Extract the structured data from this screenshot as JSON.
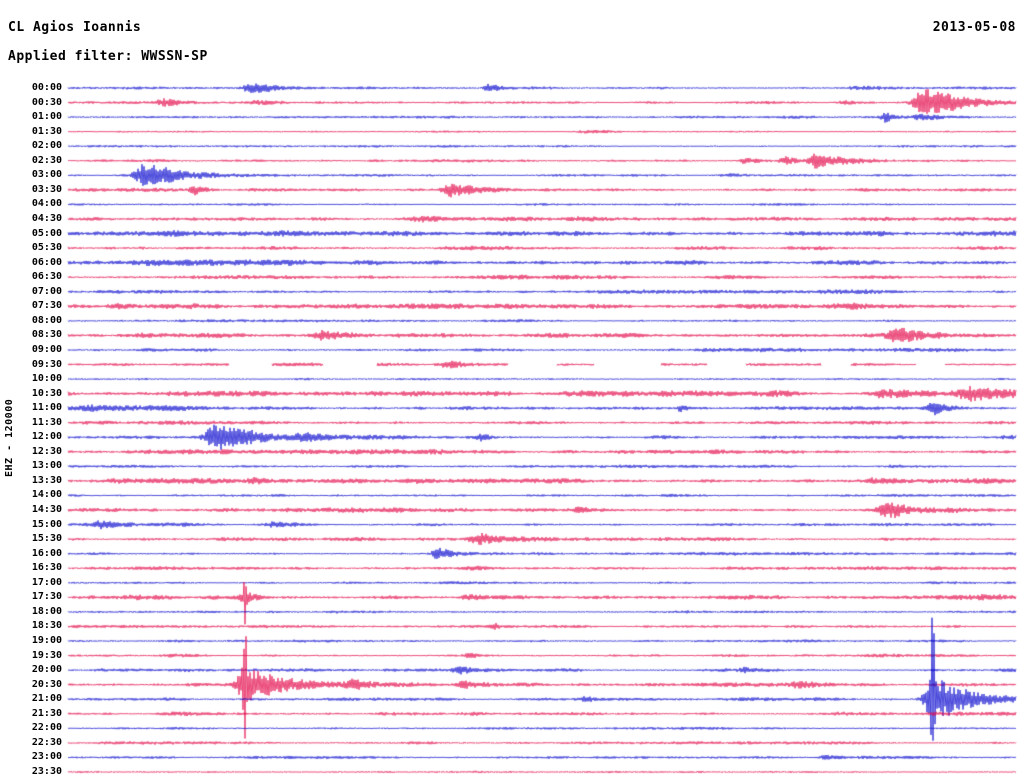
{
  "header": {
    "station_title": "CL Agios Ioannis",
    "date": "2013-05-08",
    "filter": "Applied filter: WWSSN-SP"
  },
  "axis": {
    "left_vertical_label": "EHZ - 120000"
  },
  "chart_data": {
    "type": "helicorder",
    "station": "CL Agios Ioannis",
    "channel": "EHZ",
    "scale_label": "120000",
    "date": "2013-05-08",
    "filter": "WWSSN-SP",
    "minutes_per_row": 30,
    "row_colors_alternate": [
      "#0000cd",
      "#e30045"
    ],
    "row_labels": [
      "00:00",
      "00:30",
      "01:00",
      "01:30",
      "02:00",
      "02:30",
      "03:00",
      "03:30",
      "04:00",
      "04:30",
      "05:00",
      "05:30",
      "06:00",
      "06:30",
      "07:00",
      "07:30",
      "08:00",
      "08:30",
      "09:00",
      "09:30",
      "10:00",
      "10:30",
      "11:00",
      "11:30",
      "12:00",
      "12:30",
      "13:00",
      "13:30",
      "14:00",
      "14:30",
      "15:00",
      "15:30",
      "16:00",
      "16:30",
      "17:00",
      "17:30",
      "18:00",
      "18:30",
      "19:00",
      "19:30",
      "20:00",
      "20:30",
      "21:00",
      "21:30",
      "22:00",
      "22:30",
      "23:00",
      "23:30"
    ],
    "noise_amp": [
      1.0,
      1.1,
      1.0,
      0.9,
      0.9,
      1.1,
      1.0,
      1.3,
      0.9,
      1.5,
      2.1,
      1.7,
      2.1,
      1.6,
      1.5,
      1.8,
      1.1,
      1.7,
      1.6,
      1.2,
      0.9,
      2.3,
      1.7,
      1.4,
      1.5,
      1.7,
      1.1,
      1.9,
      1.3,
      1.7,
      1.4,
      1.5,
      1.2,
      1.3,
      1.0,
      2.0,
      1.1,
      1.2,
      1.0,
      1.2,
      1.2,
      1.6,
      1.3,
      1.4,
      0.9,
      1.1,
      1.0,
      1.0
    ],
    "gaps": {
      "19": [
        [
          0.17,
          0.215
        ],
        [
          0.27,
          0.325
        ],
        [
          0.465,
          0.515
        ],
        [
          0.555,
          0.625
        ],
        [
          0.675,
          0.715
        ],
        [
          0.795,
          0.825
        ],
        [
          0.895,
          0.925
        ]
      ]
    },
    "events": [
      {
        "row": 0,
        "x": 0.192,
        "amp": 4,
        "w": 0.006
      },
      {
        "row": 0,
        "x": 0.205,
        "amp": 2.5,
        "w": 0.012
      },
      {
        "row": 0,
        "x": 0.445,
        "amp": 4.5,
        "w": 0.005
      },
      {
        "row": 0,
        "x": 0.835,
        "amp": 1.8,
        "w": 0.01
      },
      {
        "row": 1,
        "x": 0.102,
        "amp": 4,
        "w": 0.009
      },
      {
        "row": 1,
        "x": 0.2,
        "amp": 1.8,
        "w": 0.012
      },
      {
        "row": 1,
        "x": 0.82,
        "amp": 2,
        "w": 0.008
      },
      {
        "row": 1,
        "x": 0.904,
        "amp": 13,
        "w": 0.011
      },
      {
        "row": 1,
        "x": 0.93,
        "amp": 5,
        "w": 0.02
      },
      {
        "row": 2,
        "x": 0.862,
        "amp": 5,
        "w": 0.004
      },
      {
        "row": 2,
        "x": 0.905,
        "amp": 2.5,
        "w": 0.012
      },
      {
        "row": 3,
        "x": 0.55,
        "amp": 1.3,
        "w": 0.01
      },
      {
        "row": 5,
        "x": 0.714,
        "amp": 3,
        "w": 0.005
      },
      {
        "row": 5,
        "x": 0.757,
        "amp": 4,
        "w": 0.005
      },
      {
        "row": 5,
        "x": 0.789,
        "amp": 6,
        "w": 0.007
      },
      {
        "row": 5,
        "x": 0.81,
        "amp": 2.5,
        "w": 0.018
      },
      {
        "row": 6,
        "x": 0.081,
        "amp": 10,
        "w": 0.01
      },
      {
        "row": 6,
        "x": 0.105,
        "amp": 4,
        "w": 0.022
      },
      {
        "row": 6,
        "x": 0.7,
        "amp": 1.5,
        "w": 0.01
      },
      {
        "row": 7,
        "x": 0.134,
        "amp": 4,
        "w": 0.005
      },
      {
        "row": 7,
        "x": 0.403,
        "amp": 6,
        "w": 0.007
      },
      {
        "row": 7,
        "x": 0.425,
        "amp": 2.5,
        "w": 0.02
      },
      {
        "row": 9,
        "x": 0.38,
        "amp": 2,
        "w": 0.02
      },
      {
        "row": 9,
        "x": 0.55,
        "amp": 1.8,
        "w": 0.02
      },
      {
        "row": 15,
        "x": 0.055,
        "amp": 2.5,
        "w": 0.012
      },
      {
        "row": 15,
        "x": 0.825,
        "amp": 2.5,
        "w": 0.02
      },
      {
        "row": 17,
        "x": 0.271,
        "amp": 4,
        "w": 0.012
      },
      {
        "row": 17,
        "x": 0.878,
        "amp": 7,
        "w": 0.011
      },
      {
        "row": 19,
        "x": 0.403,
        "amp": 3,
        "w": 0.012
      },
      {
        "row": 21,
        "x": 0.86,
        "amp": 3,
        "w": 0.01
      },
      {
        "row": 21,
        "x": 0.955,
        "amp": 5.5,
        "w": 0.018
      },
      {
        "row": 22,
        "x": 0.03,
        "amp": 3,
        "w": 0.02
      },
      {
        "row": 22,
        "x": 0.646,
        "amp": 2.5,
        "w": 0.004
      },
      {
        "row": 22,
        "x": 0.915,
        "amp": 5,
        "w": 0.008
      },
      {
        "row": 24,
        "x": 0.155,
        "amp": 13,
        "w": 0.009
      },
      {
        "row": 24,
        "x": 0.185,
        "amp": 4,
        "w": 0.022
      },
      {
        "row": 24,
        "x": 0.25,
        "amp": 3,
        "w": 0.012
      },
      {
        "row": 24,
        "x": 0.435,
        "amp": 3,
        "w": 0.005
      },
      {
        "row": 27,
        "x": 0.2,
        "amp": 2.5,
        "w": 0.01
      },
      {
        "row": 27,
        "x": 0.851,
        "amp": 2.5,
        "w": 0.01
      },
      {
        "row": 29,
        "x": 0.54,
        "amp": 3,
        "w": 0.005
      },
      {
        "row": 29,
        "x": 0.867,
        "amp": 8,
        "w": 0.011
      },
      {
        "row": 30,
        "x": 0.034,
        "amp": 3,
        "w": 0.008
      },
      {
        "row": 30,
        "x": 0.218,
        "amp": 3,
        "w": 0.007
      },
      {
        "row": 31,
        "x": 0.435,
        "amp": 4,
        "w": 0.009
      },
      {
        "row": 32,
        "x": 0.392,
        "amp": 6,
        "w": 0.007
      },
      {
        "row": 33,
        "x": 0.43,
        "amp": 2,
        "w": 0.01
      },
      {
        "row": 35,
        "x": 0.187,
        "amp": 26,
        "w": 0.0009,
        "spike": true
      },
      {
        "row": 35,
        "x": 0.187,
        "amp": 6,
        "w": 0.004
      },
      {
        "row": 35,
        "x": 0.424,
        "amp": 3,
        "w": 0.006
      },
      {
        "row": 37,
        "x": 0.45,
        "amp": 3,
        "w": 0.004
      },
      {
        "row": 39,
        "x": 0.424,
        "amp": 2.5,
        "w": 0.006
      },
      {
        "row": 40,
        "x": 0.414,
        "amp": 4,
        "w": 0.007
      },
      {
        "row": 40,
        "x": 0.714,
        "amp": 2,
        "w": 0.006
      },
      {
        "row": 41,
        "x": 0.187,
        "amp": 75,
        "w": 0.0012,
        "spike": true
      },
      {
        "row": 41,
        "x": 0.187,
        "amp": 17,
        "w": 0.007
      },
      {
        "row": 41,
        "x": 0.21,
        "amp": 6,
        "w": 0.02
      },
      {
        "row": 41,
        "x": 0.303,
        "amp": 4,
        "w": 0.008
      },
      {
        "row": 41,
        "x": 0.419,
        "amp": 3.5,
        "w": 0.008
      },
      {
        "row": 41,
        "x": 0.77,
        "amp": 2.5,
        "w": 0.008
      },
      {
        "row": 42,
        "x": 0.912,
        "amp": 90,
        "w": 0.0012,
        "spike": true
      },
      {
        "row": 42,
        "x": 0.913,
        "amp": 22,
        "w": 0.008
      },
      {
        "row": 42,
        "x": 0.935,
        "amp": 8,
        "w": 0.022
      },
      {
        "row": 42,
        "x": 0.545,
        "amp": 2.5,
        "w": 0.005
      },
      {
        "row": 46,
        "x": 0.8,
        "amp": 2,
        "w": 0.008
      }
    ]
  }
}
